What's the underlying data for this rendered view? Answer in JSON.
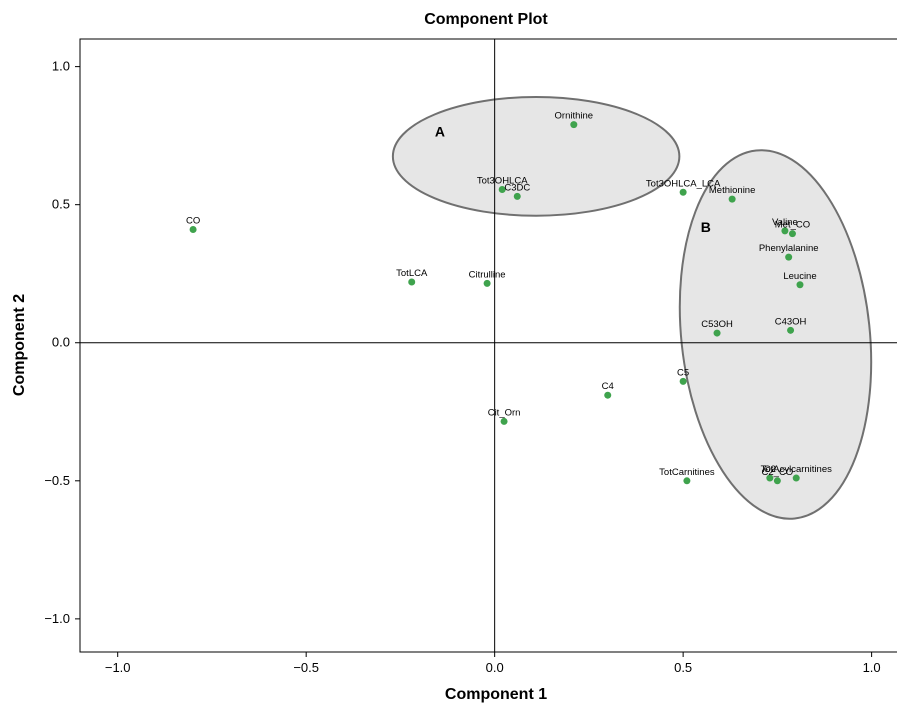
{
  "chart_data": {
    "type": "scatter",
    "title": "Component Plot",
    "xlabel": "Component 1",
    "ylabel": "Component 2",
    "xlim": [
      -1.1,
      1.07
    ],
    "ylim": [
      -1.12,
      1.1
    ],
    "xticks": [
      -1.0,
      -0.5,
      0.0,
      0.5,
      1.0
    ],
    "xtick_labels": [
      "−1.0",
      "−0.5",
      "0.0",
      "0.5",
      "1.0"
    ],
    "yticks": [
      -1.0,
      -0.5,
      0.0,
      0.5,
      1.0
    ],
    "ytick_labels": [
      "−1.0",
      "−0.5",
      "0.0",
      "0.5",
      "1.0"
    ],
    "grid": false,
    "reference_lines": {
      "x": 0,
      "y": 0
    },
    "point_color": "#3fa34d",
    "ellipse_fill": "#e6e6e6",
    "ellipse_stroke": "#707070",
    "points": [
      {
        "label": "Ornithine",
        "x": 0.21,
        "y": 0.79
      },
      {
        "label": "Tot3OHLCA",
        "x": 0.02,
        "y": 0.555
      },
      {
        "label": "C3DC",
        "x": 0.06,
        "y": 0.53
      },
      {
        "label": "Tot3OHLCA_LCA",
        "x": 0.5,
        "y": 0.545
      },
      {
        "label": "Methionine",
        "x": 0.63,
        "y": 0.52
      },
      {
        "label": "CO",
        "x": -0.8,
        "y": 0.41
      },
      {
        "label": "Valine",
        "x": 0.77,
        "y": 0.405
      },
      {
        "label": "Met_CO",
        "x": 0.79,
        "y": 0.395
      },
      {
        "label": "Phenylalanine",
        "x": 0.78,
        "y": 0.31
      },
      {
        "label": "TotLCA",
        "x": -0.22,
        "y": 0.22
      },
      {
        "label": "Citrulline",
        "x": -0.02,
        "y": 0.215
      },
      {
        "label": "Leucine",
        "x": 0.81,
        "y": 0.21
      },
      {
        "label": "C53OH",
        "x": 0.59,
        "y": 0.035
      },
      {
        "label": "C43OH",
        "x": 0.785,
        "y": 0.045
      },
      {
        "label": "C5",
        "x": 0.5,
        "y": -0.14
      },
      {
        "label": "C4",
        "x": 0.3,
        "y": -0.19
      },
      {
        "label": "Cit_Orn",
        "x": 0.025,
        "y": -0.285
      },
      {
        "label": "TotCarnitines",
        "x": 0.51,
        "y": -0.5
      },
      {
        "label": "C2",
        "x": 0.73,
        "y": -0.49
      },
      {
        "label": "C2_CO",
        "x": 0.75,
        "y": -0.5
      },
      {
        "label": "TotAcylcarnitines",
        "x": 0.8,
        "y": -0.49
      }
    ],
    "groups": [
      {
        "label": "A",
        "cx": 0.11,
        "cy": 0.675,
        "rx": 0.38,
        "ry": 0.215,
        "label_x": -0.145,
        "label_y": 0.765
      },
      {
        "label": "B",
        "cx": 0.745,
        "cy": 0.03,
        "rx": 0.25,
        "ry": 0.67,
        "rotation_deg": -6,
        "label_x": 0.56,
        "label_y": 0.42
      }
    ]
  }
}
